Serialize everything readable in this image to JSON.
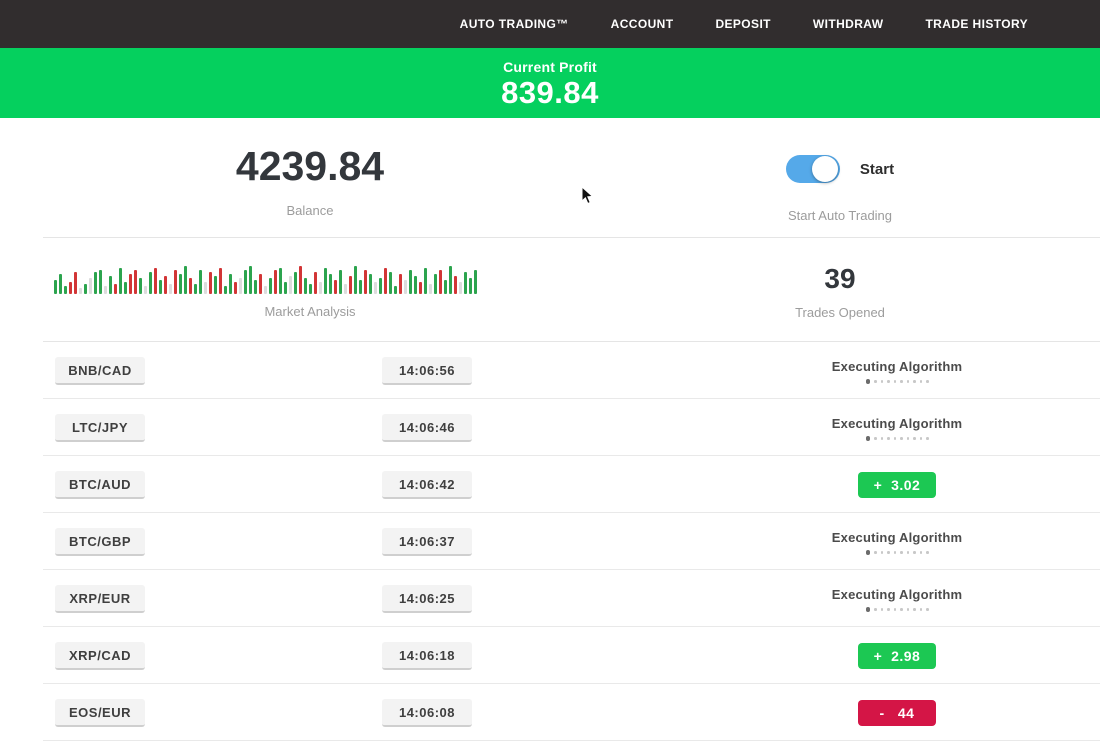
{
  "navbar": {
    "items": [
      "AUTO TRADING™",
      "ACCOUNT",
      "DEPOSIT",
      "WITHDRAW",
      "TRADE HISTORY"
    ]
  },
  "profit_banner": {
    "label": "Current Profit",
    "value": "839.84"
  },
  "account": {
    "balance": "4239.84",
    "balance_label": "Balance",
    "toggle_label": "Start",
    "toggle_caption": "Start Auto Trading",
    "toggle_on": true
  },
  "market": {
    "label": "Market Analysis",
    "trades_opened": "39",
    "trades_label": "Trades Opened",
    "bars": [
      "g14",
      "g20",
      "g8",
      "r12",
      "r22",
      "n6",
      "g10",
      "n16",
      "g22",
      "g24",
      "n8",
      "g18",
      "r10",
      "g26",
      "g12",
      "r20",
      "r24",
      "g16",
      "n8",
      "g22",
      "r26",
      "g14",
      "r18",
      "n10",
      "r24",
      "g20",
      "g28",
      "r16",
      "g10",
      "g24",
      "n12",
      "r22",
      "g18",
      "r26",
      "g8",
      "g20",
      "r12",
      "n16",
      "g24",
      "g28",
      "g14",
      "r20",
      "n8",
      "g16",
      "r24",
      "g26",
      "g12",
      "n18",
      "g22",
      "r28",
      "g16",
      "g10",
      "r22",
      "n12",
      "g26",
      "g20",
      "r14",
      "g24",
      "n10",
      "r18",
      "g28",
      "g14",
      "r24",
      "g20",
      "n12",
      "g16",
      "r26",
      "g22",
      "g8",
      "r20",
      "n14",
      "g24",
      "g18",
      "r12",
      "g26",
      "n10",
      "g20",
      "r24",
      "g14",
      "g28",
      "r18",
      "n12",
      "g22",
      "g16",
      "g24"
    ]
  },
  "trades": [
    {
      "pair": "BNB/CAD",
      "time": "14:06:56",
      "status": "executing",
      "status_label": "Executing Algorithm"
    },
    {
      "pair": "LTC/JPY",
      "time": "14:06:46",
      "status": "executing",
      "status_label": "Executing Algorithm"
    },
    {
      "pair": "BTC/AUD",
      "time": "14:06:42",
      "status": "profit",
      "value": "+  3.02"
    },
    {
      "pair": "BTC/GBP",
      "time": "14:06:37",
      "status": "executing",
      "status_label": "Executing Algorithm"
    },
    {
      "pair": "XRP/EUR",
      "time": "14:06:25",
      "status": "executing",
      "status_label": "Executing Algorithm"
    },
    {
      "pair": "XRP/CAD",
      "time": "14:06:18",
      "status": "profit",
      "value": "+  2.98"
    },
    {
      "pair": "EOS/EUR",
      "time": "14:06:08",
      "status": "loss",
      "value": "-   44"
    }
  ],
  "colors": {
    "navbar_bg": "#312d2e",
    "banner_green": "#05d05e",
    "badge_green": "#1cc853",
    "badge_red": "#d41546",
    "toggle_blue": "#55a9e9",
    "bar_green": "#2ca44e",
    "bar_red": "#d23536",
    "bar_neutral": "#dcdcdc"
  }
}
